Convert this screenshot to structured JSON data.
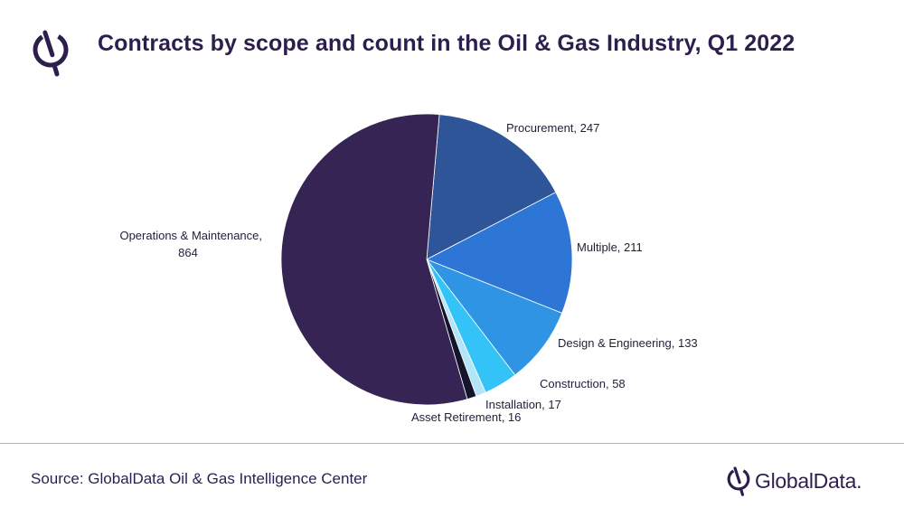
{
  "title": "Contracts by scope and count in the Oil & Gas Industry, Q1 2022",
  "source": "Source: GlobalData Oil & Gas Intelligence Center",
  "brand": {
    "name": "GlobalData."
  },
  "chart_data": {
    "type": "pie",
    "title": "Contracts by scope and count in the Oil & Gas Industry, Q1 2022",
    "slices": [
      {
        "label": "Procurement",
        "value": 247,
        "color": "#2e5597",
        "display": [
          "Procurement, 247"
        ]
      },
      {
        "label": "Multiple",
        "value": 211,
        "color": "#2e76d6",
        "display": [
          "Multiple, 211"
        ]
      },
      {
        "label": "Design & Engineering",
        "value": 133,
        "color": "#2e94e3",
        "display": [
          "Design & Engineering, 133"
        ]
      },
      {
        "label": "Construction",
        "value": 58,
        "color": "#33c3f7",
        "display": [
          "Construction, 58"
        ]
      },
      {
        "label": "Installation",
        "value": 17,
        "color": "#b3e4f8",
        "display": [
          "Installation, 17"
        ]
      },
      {
        "label": "Asset Retirement",
        "value": 16,
        "color": "#14142a",
        "display": [
          "Asset Retirement, 16"
        ]
      },
      {
        "label": "Operations & Maintenance",
        "value": 864,
        "color": "#352454",
        "display": [
          "Operations & Maintenance,",
          "864"
        ]
      }
    ],
    "legend": "none",
    "data_labels": "outside"
  }
}
